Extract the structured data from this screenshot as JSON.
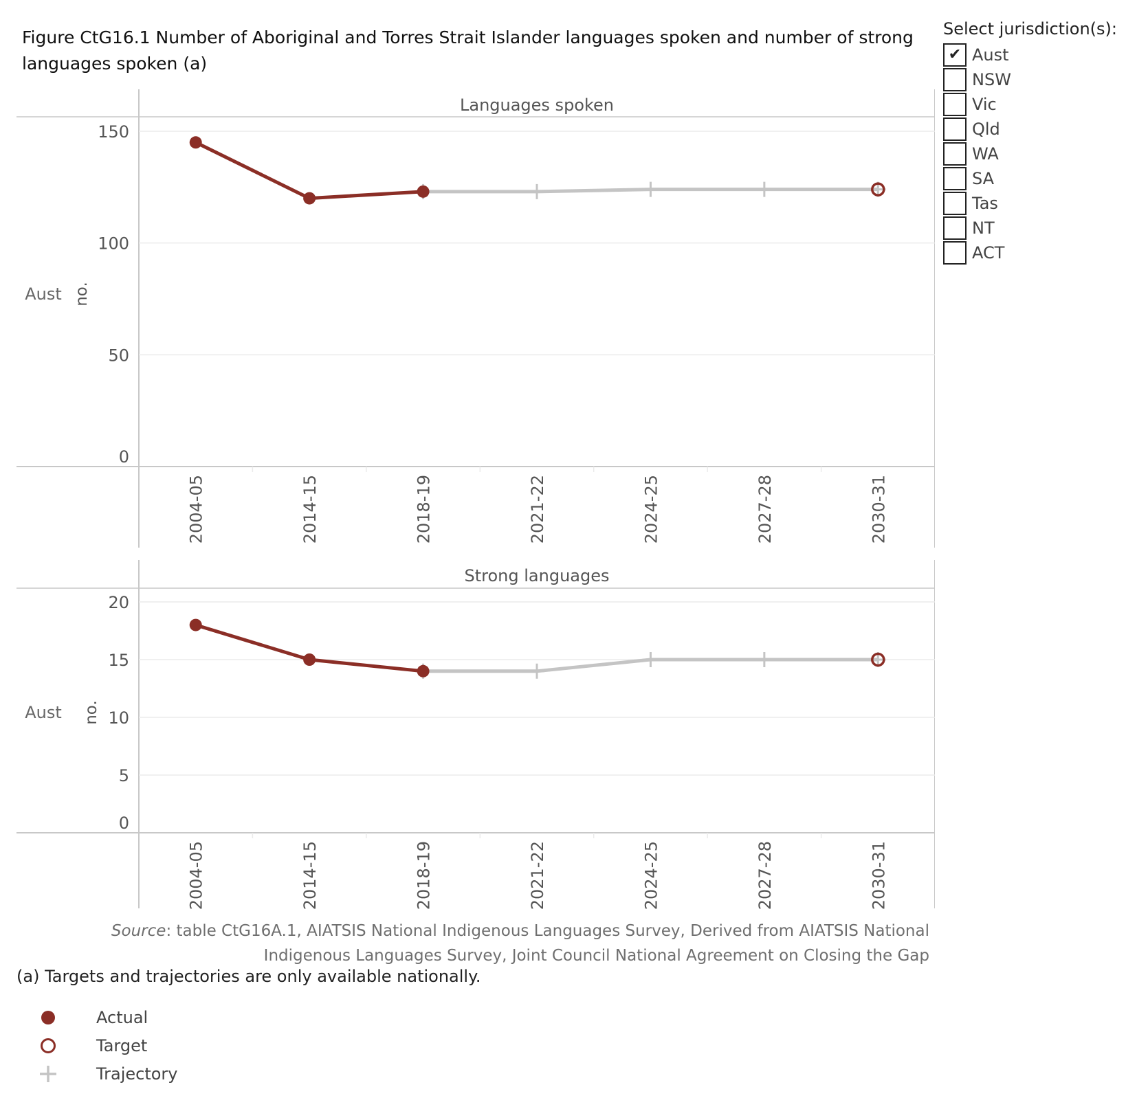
{
  "title": "Figure CtG16.1 Number of Aboriginal and Torres Strait Islander languages spoken and number of strong languages spoken (a)",
  "filter": {
    "title": "Select jurisdiction(s):",
    "options": [
      {
        "label": "Aust",
        "checked": true
      },
      {
        "label": "NSW",
        "checked": false
      },
      {
        "label": "Vic",
        "checked": false
      },
      {
        "label": "Qld",
        "checked": false
      },
      {
        "label": "WA",
        "checked": false
      },
      {
        "label": "SA",
        "checked": false
      },
      {
        "label": "Tas",
        "checked": false
      },
      {
        "label": "NT",
        "checked": false
      },
      {
        "label": "ACT",
        "checked": false
      }
    ]
  },
  "source_prefix": "Source",
  "source_text": ": table CtG16A.1, AIATSIS National Indigenous Languages Survey, Derived from AIATSIS National Indigenous Languages Survey, Joint Council National Agreement on Closing the Gap",
  "note": "(a) Targets and trajectories are only available nationally.",
  "legend": [
    {
      "label": "Actual",
      "icon": "filled-circle",
      "color": "#8B2E26"
    },
    {
      "label": "Target",
      "icon": "open-circle",
      "color": "#8B2E26"
    },
    {
      "label": "Trajectory",
      "icon": "plus",
      "color": "#C4C4C4"
    }
  ],
  "colors": {
    "actual": "#8B2E26",
    "trajectory": "#C4C4C4",
    "grid": "#EBEBEB",
    "axis": "#C8C8C8"
  },
  "chart_data": [
    {
      "type": "line",
      "panel_title": "Languages spoken",
      "row_label": "Aust",
      "ylabel": "no.",
      "categories": [
        "2004-05",
        "2014-15",
        "2018-19",
        "2021-22",
        "2024-25",
        "2027-28",
        "2030-31"
      ],
      "yticks": [
        0,
        50,
        100,
        150
      ],
      "ylim": [
        0,
        150
      ],
      "series": [
        {
          "name": "Actual",
          "values": [
            145,
            120,
            123,
            null,
            null,
            null,
            null
          ]
        },
        {
          "name": "Target",
          "values": [
            null,
            null,
            null,
            null,
            null,
            null,
            124
          ]
        },
        {
          "name": "Trajectory",
          "values": [
            null,
            null,
            123,
            123,
            124,
            124,
            124
          ]
        }
      ]
    },
    {
      "type": "line",
      "panel_title": "Strong languages",
      "row_label": "Aust",
      "ylabel": "no.",
      "categories": [
        "2004-05",
        "2014-15",
        "2018-19",
        "2021-22",
        "2024-25",
        "2027-28",
        "2030-31"
      ],
      "yticks": [
        0,
        5,
        10,
        15,
        20
      ],
      "ylim": [
        0,
        20
      ],
      "series": [
        {
          "name": "Actual",
          "values": [
            18,
            15,
            14,
            null,
            null,
            null,
            null
          ]
        },
        {
          "name": "Target",
          "values": [
            null,
            null,
            null,
            null,
            null,
            null,
            15
          ]
        },
        {
          "name": "Trajectory",
          "values": [
            null,
            null,
            14,
            14,
            15,
            15,
            15
          ]
        }
      ]
    }
  ]
}
